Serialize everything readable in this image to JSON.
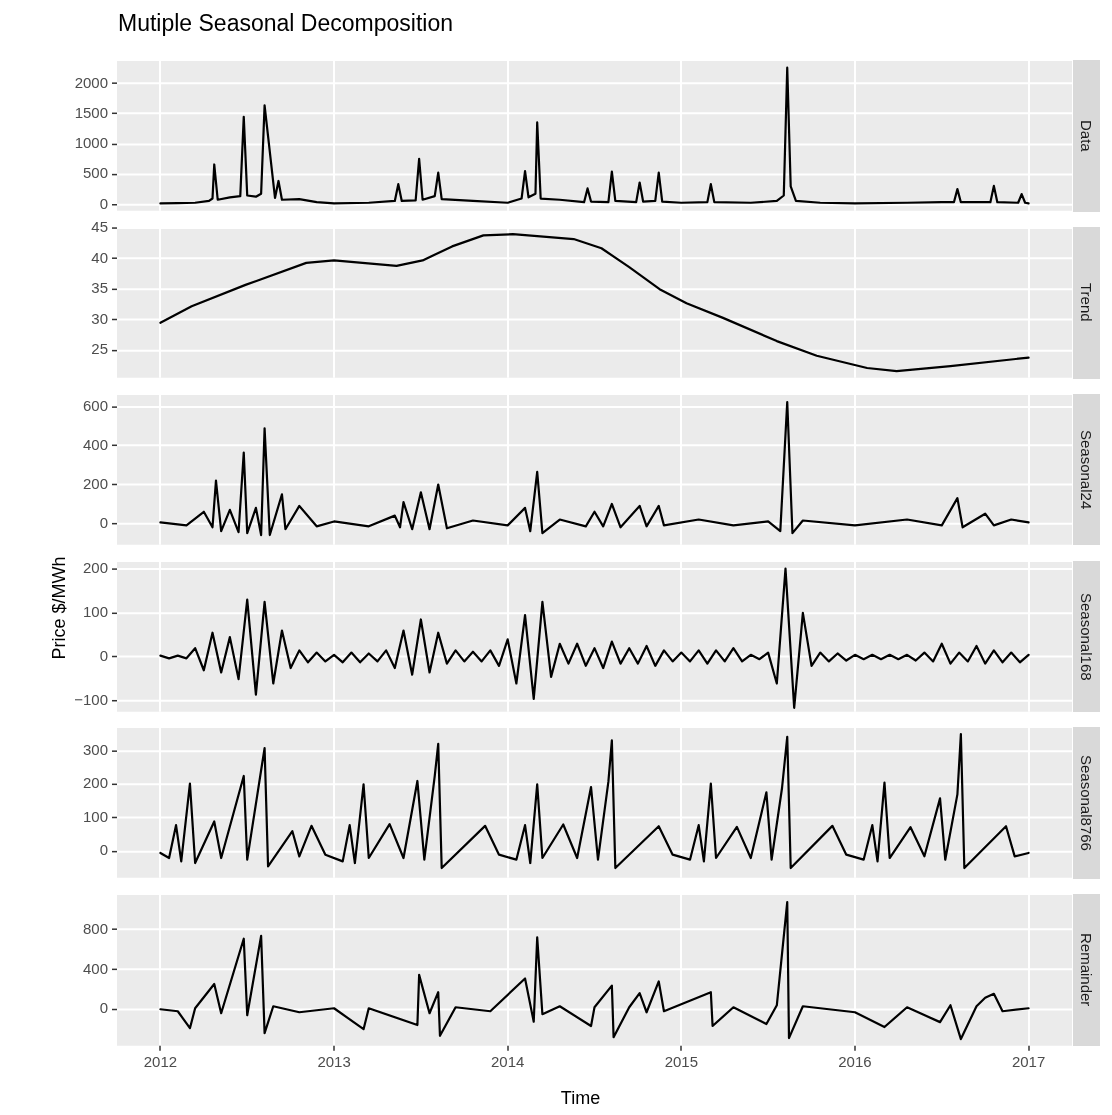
{
  "chart_data": [
    {
      "type": "line",
      "title": "Mutiple Seasonal Decomposition",
      "subtitle": "Data",
      "color": "#000000",
      "grid": true,
      "tick_labels": "y",
      "xlim": [
        2011.75,
        2017.25
      ],
      "xticks": [
        2012,
        2013,
        2014,
        2015,
        2016,
        2017
      ],
      "ylim": [
        -102,
        2369
      ],
      "yticks": [
        0,
        500,
        1000,
        1500,
        2000
      ],
      "x": [
        2012.0,
        2012.1,
        2012.2,
        2012.28,
        2012.3,
        2012.31,
        2012.33,
        2012.4,
        2012.46,
        2012.48,
        2012.5,
        2012.55,
        2012.58,
        2012.6,
        2012.66,
        2012.68,
        2012.7,
        2012.8,
        2012.9,
        2013.0,
        2013.2,
        2013.35,
        2013.37,
        2013.39,
        2013.47,
        2013.49,
        2013.51,
        2013.58,
        2013.6,
        2013.62,
        2013.8,
        2014.0,
        2014.08,
        2014.1,
        2014.12,
        2014.16,
        2014.17,
        2014.19,
        2014.3,
        2014.44,
        2014.46,
        2014.48,
        2014.58,
        2014.6,
        2014.62,
        2014.74,
        2014.76,
        2014.78,
        2014.85,
        2014.87,
        2014.89,
        2015.0,
        2015.15,
        2015.17,
        2015.19,
        2015.4,
        2015.55,
        2015.59,
        2015.61,
        2015.63,
        2015.66,
        2015.8,
        2016.0,
        2016.3,
        2016.5,
        2016.57,
        2016.59,
        2016.61,
        2016.78,
        2016.8,
        2016.82,
        2016.94,
        2016.96,
        2016.98,
        2017.0
      ],
      "values": [
        20,
        25,
        30,
        60,
        100,
        662,
        80,
        120,
        140,
        1448,
        150,
        130,
        180,
        1637,
        110,
        390,
        80,
        90,
        40,
        20,
        30,
        60,
        337,
        60,
        70,
        754,
        80,
        140,
        527,
        90,
        60,
        30,
        100,
        553,
        120,
        180,
        1356,
        100,
        80,
        40,
        267,
        50,
        40,
        543,
        60,
        40,
        364,
        50,
        60,
        527,
        50,
        30,
        40,
        337,
        40,
        30,
        60,
        150,
        2260,
        300,
        60,
        30,
        20,
        30,
        40,
        40,
        255,
        40,
        40,
        309,
        40,
        30,
        174,
        30,
        20
      ]
    },
    {
      "type": "line",
      "subtitle": "Trend",
      "color": "#000000",
      "grid": true,
      "tick_labels": "y",
      "xlim": [
        2011.75,
        2017.25
      ],
      "xticks": [
        2012,
        2013,
        2014,
        2015,
        2016,
        2017
      ],
      "ylim": [
        20.5,
        45
      ],
      "yticks": [
        25,
        30,
        35,
        40,
        45
      ],
      "x": [
        2012.0,
        2012.18,
        2012.49,
        2012.84,
        2013.0,
        2013.36,
        2013.51,
        2013.68,
        2013.86,
        2014.03,
        2014.38,
        2014.54,
        2014.7,
        2014.875,
        2015.03,
        2015.24,
        2015.55,
        2015.78,
        2016.07,
        2016.24,
        2016.55,
        2017.0
      ],
      "values": [
        29.5,
        32.2,
        35.7,
        39.3,
        39.7,
        38.8,
        39.7,
        42.0,
        43.8,
        44.0,
        43.2,
        41.7,
        38.6,
        35.0,
        32.7,
        30.3,
        26.5,
        24.1,
        22.1,
        21.6,
        22.4,
        23.8
      ]
    },
    {
      "type": "line",
      "subtitle": "Seasonal24",
      "color": "#000000",
      "grid": true,
      "tick_labels": "y",
      "xlim": [
        2011.75,
        2017.25
      ],
      "xticks": [
        2012,
        2013,
        2014,
        2015,
        2016,
        2017
      ],
      "ylim": [
        -110,
        661
      ],
      "yticks": [
        0,
        200,
        400,
        600
      ],
      "x": [
        2012.0,
        2012.15,
        2012.25,
        2012.3,
        2012.32,
        2012.35,
        2012.4,
        2012.45,
        2012.48,
        2012.5,
        2012.55,
        2012.58,
        2012.6,
        2012.63,
        2012.7,
        2012.72,
        2012.8,
        2012.9,
        2013.0,
        2013.2,
        2013.35,
        2013.38,
        2013.4,
        2013.45,
        2013.5,
        2013.55,
        2013.6,
        2013.65,
        2013.8,
        2014.0,
        2014.1,
        2014.13,
        2014.17,
        2014.2,
        2014.3,
        2014.45,
        2014.5,
        2014.55,
        2014.6,
        2014.65,
        2014.76,
        2014.8,
        2014.87,
        2014.9,
        2015.1,
        2015.3,
        2015.5,
        2015.57,
        2015.61,
        2015.64,
        2015.7,
        2016.0,
        2016.3,
        2016.5,
        2016.59,
        2016.62,
        2016.75,
        2016.8,
        2016.9,
        2017.0
      ],
      "values": [
        5,
        -10,
        60,
        -20,
        220,
        -40,
        70,
        -45,
        365,
        -50,
        80,
        -60,
        490,
        -60,
        150,
        -30,
        90,
        -15,
        10,
        -15,
        40,
        -20,
        110,
        -30,
        160,
        -30,
        200,
        -25,
        15,
        -10,
        80,
        -40,
        265,
        -50,
        20,
        -15,
        60,
        -15,
        100,
        -20,
        90,
        -15,
        90,
        -10,
        20,
        -10,
        10,
        -40,
        625,
        -50,
        15,
        -10,
        20,
        -10,
        130,
        -20,
        50,
        -10,
        20,
        5
      ]
    },
    {
      "type": "line",
      "subtitle": "Seasonal168",
      "ylabel": "Price $/MWh",
      "color": "#000000",
      "grid": true,
      "tick_labels": "y",
      "xlim": [
        2011.75,
        2017.25
      ],
      "xticks": [
        2012,
        2013,
        2014,
        2015,
        2016,
        2017
      ],
      "ylim": [
        -124,
        215
      ],
      "yticks": [
        {
          "value": -100,
          "label": "−100"
        },
        0,
        100,
        200
      ],
      "x": [
        2012.0,
        2012.05,
        2012.1,
        2012.15,
        2012.2,
        2012.25,
        2012.3,
        2012.35,
        2012.4,
        2012.45,
        2012.5,
        2012.55,
        2012.6,
        2012.65,
        2012.7,
        2012.75,
        2012.8,
        2012.85,
        2012.9,
        2012.95,
        2013.0,
        2013.05,
        2013.1,
        2013.15,
        2013.2,
        2013.25,
        2013.3,
        2013.35,
        2013.4,
        2013.45,
        2013.5,
        2013.55,
        2013.6,
        2013.65,
        2013.7,
        2013.75,
        2013.8,
        2013.85,
        2013.9,
        2013.95,
        2014.0,
        2014.05,
        2014.1,
        2014.15,
        2014.2,
        2014.25,
        2014.3,
        2014.35,
        2014.4,
        2014.45,
        2014.5,
        2014.55,
        2014.6,
        2014.65,
        2014.7,
        2014.75,
        2014.8,
        2014.85,
        2014.9,
        2014.95,
        2015.0,
        2015.05,
        2015.1,
        2015.15,
        2015.2,
        2015.25,
        2015.3,
        2015.35,
        2015.4,
        2015.45,
        2015.5,
        2015.55,
        2015.6,
        2015.65,
        2015.7,
        2015.75,
        2015.8,
        2015.85,
        2015.9,
        2015.95,
        2016.0,
        2016.05,
        2016.1,
        2016.15,
        2016.2,
        2016.25,
        2016.3,
        2016.35,
        2016.4,
        2016.45,
        2016.5,
        2016.55,
        2016.6,
        2016.65,
        2016.7,
        2016.75,
        2016.8,
        2016.85,
        2016.9,
        2016.95,
        2017.0
      ],
      "values": [
        3,
        -3,
        3,
        -3,
        20,
        -30,
        55,
        -35,
        45,
        -50,
        130,
        -85,
        125,
        -60,
        60,
        -25,
        15,
        -12,
        10,
        -10,
        5,
        -12,
        10,
        -12,
        8,
        -10,
        15,
        -25,
        60,
        -40,
        85,
        -35,
        55,
        -15,
        15,
        -10,
        12,
        -10,
        15,
        -20,
        40,
        -60,
        95,
        -95,
        125,
        -45,
        30,
        -15,
        30,
        -20,
        20,
        -25,
        35,
        -15,
        20,
        -15,
        25,
        -20,
        15,
        -10,
        10,
        -10,
        15,
        -15,
        15,
        -10,
        20,
        -10,
        5,
        -5,
        10,
        -60,
        200,
        -115,
        100,
        -20,
        10,
        -10,
        8,
        -8,
        5,
        -5,
        5,
        -5,
        5,
        -5,
        5,
        -8,
        10,
        -10,
        30,
        -15,
        10,
        -10,
        25,
        -15,
        15,
        -12,
        10,
        -12,
        5
      ]
    },
    {
      "type": "line",
      "subtitle": "Seasonal8766",
      "color": "#000000",
      "grid": true,
      "tick_labels": "y",
      "xlim": [
        2011.75,
        2017.25
      ],
      "xticks": [
        2012,
        2013,
        2014,
        2015,
        2016,
        2017
      ],
      "ylim": [
        -79,
        368
      ],
      "yticks": [
        0,
        100,
        200,
        300
      ],
      "x": [
        2012.0,
        2012.05,
        2012.09,
        2012.12,
        2012.17,
        2012.2,
        2012.31,
        2012.35,
        2012.48,
        2012.5,
        2012.58,
        2012.6,
        2012.62,
        2012.76,
        2012.8,
        2012.87,
        2012.95,
        2013.05,
        2013.09,
        2013.12,
        2013.17,
        2013.2,
        2013.32,
        2013.4,
        2013.48,
        2013.52,
        2013.58,
        2013.6,
        2013.62,
        2013.87,
        2013.95,
        2014.05,
        2014.1,
        2014.13,
        2014.17,
        2014.2,
        2014.32,
        2014.4,
        2014.48,
        2014.52,
        2014.58,
        2014.6,
        2014.62,
        2014.87,
        2014.95,
        2015.05,
        2015.1,
        2015.13,
        2015.17,
        2015.2,
        2015.32,
        2015.4,
        2015.49,
        2015.52,
        2015.58,
        2015.61,
        2015.63,
        2015.87,
        2015.95,
        2016.05,
        2016.1,
        2016.13,
        2016.17,
        2016.2,
        2016.32,
        2016.4,
        2016.49,
        2016.52,
        2016.59,
        2016.61,
        2016.63,
        2016.87,
        2016.92,
        2017.0
      ],
      "values": [
        -5,
        -20,
        78,
        -30,
        202,
        -35,
        89,
        -20,
        225,
        -25,
        242,
        308,
        -45,
        60,
        -15,
        76,
        -10,
        -30,
        78,
        -35,
        200,
        -20,
        81,
        -20,
        210,
        -25,
        225,
        321,
        -50,
        76,
        -10,
        -25,
        78,
        -35,
        200,
        -20,
        80,
        -20,
        192,
        -25,
        208,
        331,
        -50,
        75,
        -10,
        -25,
        78,
        -30,
        202,
        -20,
        73,
        -20,
        176,
        -25,
        189,
        342,
        -50,
        76,
        -10,
        -25,
        78,
        -30,
        205,
        -20,
        72,
        -15,
        158,
        -25,
        170,
        350,
        -50,
        75,
        -15,
        -5
      ]
    },
    {
      "type": "line",
      "subtitle": "Remainder",
      "xlabel": "Time",
      "color": "#000000",
      "grid": true,
      "xlim": [
        2011.75,
        2017.25
      ],
      "xticks": [
        2012,
        2013,
        2014,
        2015,
        2016,
        2017
      ],
      "ylim": [
        -365,
        1145
      ],
      "yticks": [
        0,
        400,
        800
      ],
      "x": [
        2012.0,
        2012.1,
        2012.17,
        2012.2,
        2012.31,
        2012.35,
        2012.48,
        2012.5,
        2012.58,
        2012.6,
        2012.65,
        2012.8,
        2013.0,
        2013.17,
        2013.2,
        2013.48,
        2013.49,
        2013.55,
        2013.6,
        2013.61,
        2013.7,
        2013.9,
        2014.1,
        2014.15,
        2014.17,
        2014.2,
        2014.3,
        2014.48,
        2014.5,
        2014.6,
        2014.61,
        2014.7,
        2014.76,
        2014.8,
        2014.87,
        2014.9,
        2015.17,
        2015.18,
        2015.3,
        2015.49,
        2015.55,
        2015.61,
        2015.62,
        2015.7,
        2016.0,
        2016.17,
        2016.3,
        2016.49,
        2016.55,
        2016.61,
        2016.7,
        2016.75,
        2016.8,
        2016.85,
        2017.0
      ],
      "values": [
        0,
        -20,
        -190,
        10,
        253,
        -40,
        707,
        -60,
        736,
        -240,
        30,
        -30,
        10,
        -200,
        10,
        -158,
        345,
        -40,
        171,
        -266,
        20,
        -20,
        309,
        -125,
        720,
        -50,
        30,
        -168,
        20,
        237,
        -280,
        20,
        161,
        -30,
        279,
        -20,
        171,
        -168,
        20,
        -148,
        40,
        1075,
        -289,
        30,
        -30,
        -178,
        20,
        -129,
        40,
        -299,
        30,
        115,
        155,
        -20,
        10
      ]
    }
  ]
}
